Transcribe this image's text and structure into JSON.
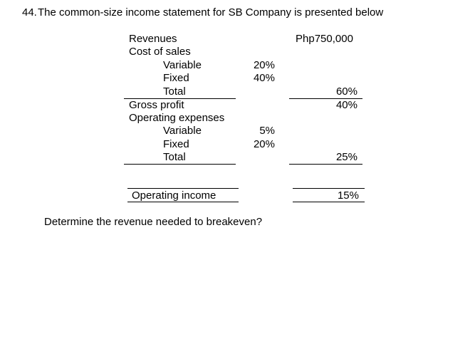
{
  "question": {
    "number": "44.",
    "text": "The common-size income statement for SB Company is presented below"
  },
  "statement": {
    "revenues": {
      "label": "Revenues",
      "value": "Php750,000"
    },
    "cost_of_sales": {
      "label": "Cost of sales",
      "variable": {
        "label": "Variable",
        "value": "20%"
      },
      "fixed": {
        "label": "Fixed",
        "value": "40%"
      },
      "total": {
        "label": "Total",
        "value": "60%"
      }
    },
    "gross_profit": {
      "label": "Gross profit",
      "value": "40%"
    },
    "operating_expenses": {
      "label": "Operating expenses",
      "variable": {
        "label": "Variable",
        "value": "5%"
      },
      "fixed": {
        "label": "Fixed",
        "value": "20%"
      },
      "total": {
        "label": "Total",
        "value": "25%"
      }
    },
    "operating_income": {
      "label": "Operating income",
      "value": "15%"
    }
  },
  "prompt": "Determine the revenue needed to breakeven?"
}
